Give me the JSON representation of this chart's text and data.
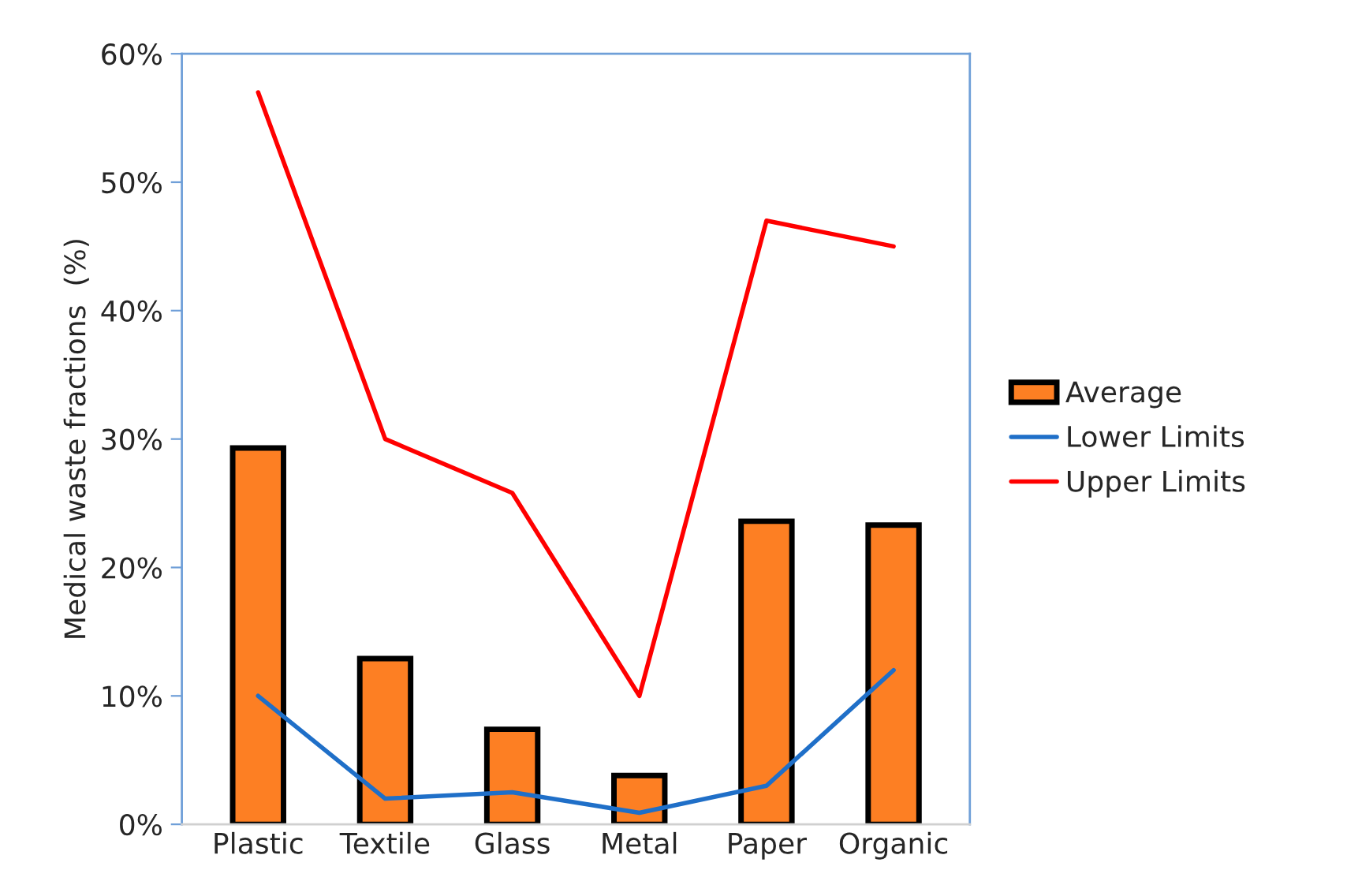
{
  "chart_data": {
    "type": "bar",
    "ylabel": "Medical waste fractions  (%)",
    "categories": [
      "Plastic",
      "Textile",
      "Glass",
      "Metal",
      "Paper",
      "Organic"
    ],
    "series": [
      {
        "name": "Average",
        "color": "#fd7f23",
        "values": [
          29.3,
          12.9,
          7.4,
          3.8,
          23.6,
          23.3
        ]
      },
      {
        "name": "Lower Limits",
        "type": "line",
        "color": "#1f6fc8",
        "values": [
          10,
          2.0,
          2.5,
          0.9,
          3.0,
          12.0
        ]
      },
      {
        "name": "Upper Limits",
        "type": "line",
        "color": "#ff0000",
        "values": [
          57,
          30,
          25.8,
          10,
          47,
          45
        ]
      }
    ],
    "ylim": [
      0,
      60
    ],
    "yticks": [
      {
        "value": 0,
        "label": "0%"
      },
      {
        "value": 10,
        "label": "10%"
      },
      {
        "value": 20,
        "label": "20%"
      },
      {
        "value": 30,
        "label": "30%"
      },
      {
        "value": 40,
        "label": "40%"
      },
      {
        "value": 50,
        "label": "50%"
      },
      {
        "value": 60,
        "label": "60%"
      }
    ],
    "grid": false,
    "legend": "right"
  }
}
